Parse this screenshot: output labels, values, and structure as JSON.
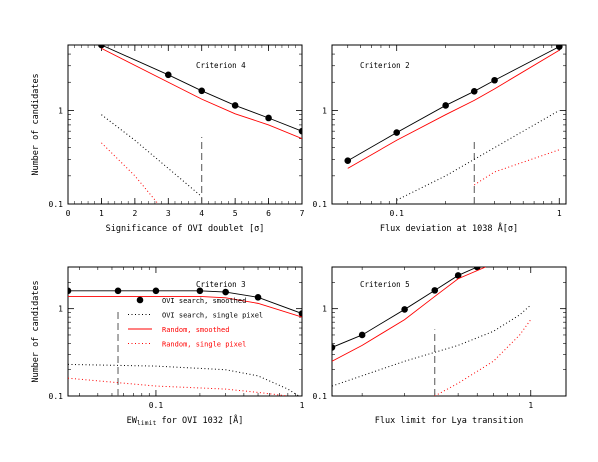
{
  "colors": {
    "observed": "#000000",
    "random": "#ff0000",
    "frame": "#000000",
    "threshold": "#555555"
  },
  "shared": {
    "ylabel": "Number of candidates"
  },
  "chart_data": [
    {
      "id": "p1",
      "type": "line",
      "annotation": "Criterion 4",
      "xlabel": "Significance of OVI doublet [σ]",
      "ylabel": "Number of candidates",
      "xscale": "linear",
      "yscale": "log",
      "xlim": [
        0,
        7
      ],
      "ylim": [
        0.1,
        5
      ],
      "xticks": [
        0,
        1,
        2,
        3,
        4,
        5,
        6,
        7
      ],
      "xtick_labels": [
        "0",
        "1",
        "2",
        "3",
        "4",
        "5",
        "6",
        "7"
      ],
      "yticks": [
        0.1,
        1
      ],
      "ytick_labels": [
        "0.1",
        "1"
      ],
      "threshold_x": 4,
      "threshold_y": [
        0.1,
        0.52
      ],
      "series": [
        {
          "style": "dots-line",
          "color": "#000000",
          "x": [
            1,
            3,
            4,
            5,
            6,
            7
          ],
          "y": [
            5.0,
            2.4,
            1.62,
            1.13,
            0.83,
            0.6
          ]
        },
        {
          "style": "solid",
          "color": "#ff0000",
          "x": [
            1,
            3,
            4,
            5,
            6,
            7
          ],
          "y": [
            4.6,
            2.0,
            1.32,
            0.92,
            0.7,
            0.5
          ]
        },
        {
          "style": "dotted",
          "color": "#000000",
          "x": [
            1,
            2,
            3,
            4
          ],
          "y": [
            0.9,
            0.48,
            0.24,
            0.12
          ]
        },
        {
          "style": "dotted",
          "color": "#ff0000",
          "x": [
            1,
            2,
            2.7
          ],
          "y": [
            0.45,
            0.2,
            0.1
          ]
        }
      ]
    },
    {
      "id": "p2",
      "type": "line",
      "annotation": "Criterion 2",
      "xlabel": "Flux deviation at 1038 Å[σ]",
      "ylabel": "",
      "xscale": "log",
      "yscale": "log",
      "xlim": [
        0.04,
        1.1
      ],
      "ylim": [
        0.1,
        5
      ],
      "xticks": [
        0.1,
        1
      ],
      "xtick_labels": [
        "0.1",
        "1"
      ],
      "yticks": [
        0.1,
        1
      ],
      "ytick_labels": [
        "0.1",
        "1"
      ],
      "threshold_x": 0.3,
      "threshold_y": [
        0.1,
        0.48
      ],
      "series": [
        {
          "style": "dots-line",
          "color": "#000000",
          "x": [
            0.05,
            0.1,
            0.2,
            0.3,
            0.4,
            1.0
          ],
          "y": [
            0.29,
            0.58,
            1.13,
            1.6,
            2.1,
            4.8
          ]
        },
        {
          "style": "solid",
          "color": "#ff0000",
          "x": [
            0.05,
            0.1,
            0.2,
            0.3,
            0.4,
            1.0
          ],
          "y": [
            0.24,
            0.48,
            0.9,
            1.28,
            1.7,
            4.4
          ]
        },
        {
          "style": "dotted",
          "color": "#000000",
          "x": [
            0.1,
            0.2,
            0.3,
            0.5,
            1.0
          ],
          "y": [
            0.11,
            0.2,
            0.3,
            0.5,
            1.0
          ]
        },
        {
          "style": "dotted",
          "color": "#ff0000",
          "x": [
            0.3,
            0.4,
            0.6,
            1.0
          ],
          "y": [
            0.16,
            0.22,
            0.28,
            0.38
          ]
        }
      ]
    },
    {
      "id": "p3",
      "type": "line",
      "annotation": "Criterion 3",
      "xlabel": "EW for OVI 1032 [Å]",
      "xlabel_prefix": "EW",
      "xlabel_sub": "limit",
      "xlabel_suffix": " for OVI 1032 [Å]",
      "ylabel": "Number of candidates",
      "xscale": "log",
      "yscale": "log",
      "xlim": [
        0.025,
        1.0
      ],
      "ylim": [
        0.1,
        3
      ],
      "xticks": [
        0.1,
        1
      ],
      "xtick_labels": [
        "0.1",
        "1"
      ],
      "yticks": [
        0.1,
        1
      ],
      "ytick_labels": [
        "0.1",
        "1"
      ],
      "threshold_x": 0.055,
      "threshold_y": [
        0.1,
        1.0
      ],
      "series": [
        {
          "style": "dots-line",
          "color": "#000000",
          "x": [
            0.025,
            0.055,
            0.1,
            0.2,
            0.3,
            0.5,
            1.0
          ],
          "y": [
            1.6,
            1.6,
            1.6,
            1.6,
            1.55,
            1.35,
            0.88
          ]
        },
        {
          "style": "solid",
          "color": "#ff0000",
          "x": [
            0.025,
            0.055,
            0.1,
            0.2,
            0.3,
            0.5,
            1.0
          ],
          "y": [
            1.38,
            1.38,
            1.38,
            1.38,
            1.33,
            1.15,
            0.8
          ]
        },
        {
          "style": "dotted",
          "color": "#000000",
          "x": [
            0.025,
            0.1,
            0.3,
            0.5,
            0.8,
            0.95
          ],
          "y": [
            0.23,
            0.22,
            0.2,
            0.17,
            0.12,
            0.1
          ]
        },
        {
          "style": "dotted",
          "color": "#ff0000",
          "x": [
            0.025,
            0.1,
            0.3,
            0.5,
            0.8
          ],
          "y": [
            0.16,
            0.13,
            0.12,
            0.11,
            0.1
          ]
        }
      ],
      "legend": {
        "placement": "left",
        "entries": [
          {
            "label": "OVI search, smoothed",
            "style": "dot",
            "color": "#000000"
          },
          {
            "label": "OVI search, single pixel",
            "style": "dotted",
            "color": "#000000"
          },
          {
            "label": "Random, smoothed",
            "style": "solid",
            "color": "#ff0000"
          },
          {
            "label": "Random, single pixel",
            "style": "dotted",
            "color": "#ff0000"
          }
        ]
      }
    },
    {
      "id": "p4",
      "type": "line",
      "annotation": "Criterion 5",
      "xlabel": "Flux limit for Lya transition",
      "ylabel": "",
      "xscale": "log",
      "yscale": "log",
      "xlim": [
        0.15,
        1.4
      ],
      "ylim": [
        0.1,
        3
      ],
      "xticks": [
        1
      ],
      "xtick_labels": [
        "1"
      ],
      "yticks": [
        0.1,
        1
      ],
      "ytick_labels": [
        "0.1",
        "1"
      ],
      "threshold_x": 0.4,
      "threshold_y": [
        0.1,
        0.58
      ],
      "series": [
        {
          "style": "dots-line",
          "color": "#000000",
          "x": [
            0.15,
            0.2,
            0.3,
            0.4,
            0.5,
            0.6
          ],
          "y": [
            0.36,
            0.5,
            0.98,
            1.62,
            2.4,
            3.0
          ]
        },
        {
          "style": "solid",
          "color": "#ff0000",
          "x": [
            0.15,
            0.2,
            0.3,
            0.4,
            0.5,
            0.65
          ],
          "y": [
            0.25,
            0.38,
            0.75,
            1.38,
            2.2,
            3.0
          ]
        },
        {
          "style": "dotted",
          "color": "#000000",
          "x": [
            0.15,
            0.3,
            0.5,
            0.7,
            0.9,
            1.0
          ],
          "y": [
            0.13,
            0.25,
            0.38,
            0.55,
            0.85,
            1.1
          ]
        },
        {
          "style": "dotted",
          "color": "#ff0000",
          "x": [
            0.4,
            0.5,
            0.7,
            0.9,
            1.0
          ],
          "y": [
            0.1,
            0.14,
            0.25,
            0.5,
            0.75
          ]
        }
      ]
    }
  ]
}
